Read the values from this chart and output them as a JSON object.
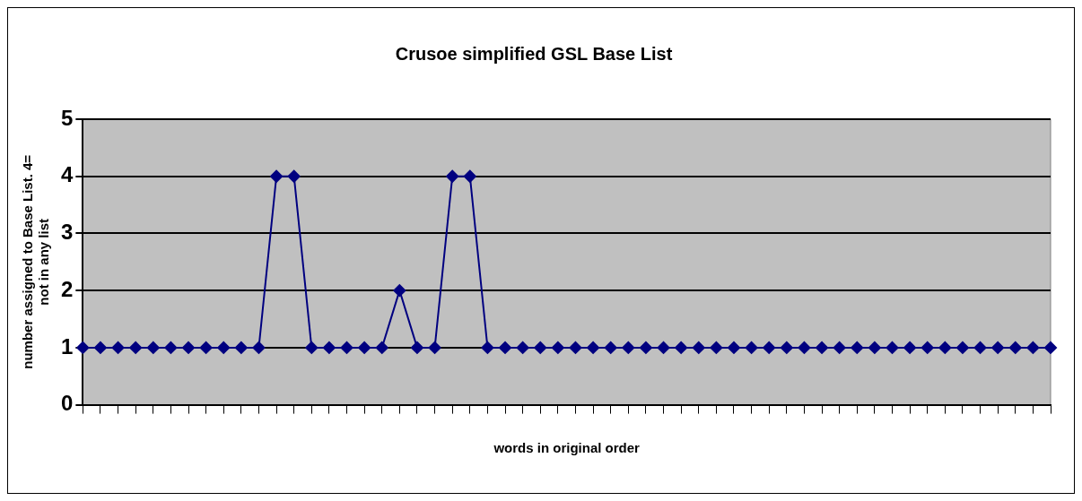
{
  "chart_data": {
    "type": "line",
    "title": "Crusoe simplified GSL Base List",
    "xlabel": "words in original order",
    "ylabel": "number assigned to Base List. 4=\nnot in any list",
    "categories": [
      null,
      null,
      null,
      null,
      null,
      null,
      null,
      null,
      null,
      null,
      null,
      null,
      null,
      null,
      null,
      null,
      null,
      null,
      null,
      null,
      null,
      null,
      null,
      null,
      null,
      null,
      null,
      null,
      null,
      null,
      null,
      null,
      null,
      null,
      null,
      null,
      null,
      null,
      null,
      null,
      null,
      null,
      null,
      null,
      null,
      null,
      null,
      null,
      null,
      null,
      null,
      null,
      null,
      null,
      null,
      null
    ],
    "series": [
      {
        "color": "#000080",
        "values": [
          1,
          1,
          1,
          1,
          1,
          1,
          1,
          1,
          1,
          1,
          1,
          4,
          4,
          1,
          1,
          1,
          1,
          1,
          2,
          1,
          1,
          4,
          4,
          1,
          1,
          1,
          1,
          1,
          1,
          1,
          1,
          1,
          1,
          1,
          1,
          1,
          1,
          1,
          1,
          1,
          1,
          1,
          1,
          1,
          1,
          1,
          1,
          1,
          1,
          1,
          1,
          1,
          1,
          1,
          1,
          1
        ]
      }
    ],
    "ylim": [
      0,
      5
    ],
    "yticks": [
      0,
      1,
      2,
      3,
      4,
      5
    ],
    "grid": "y",
    "legend": false,
    "marker": "diamond",
    "line_style": "solid"
  }
}
